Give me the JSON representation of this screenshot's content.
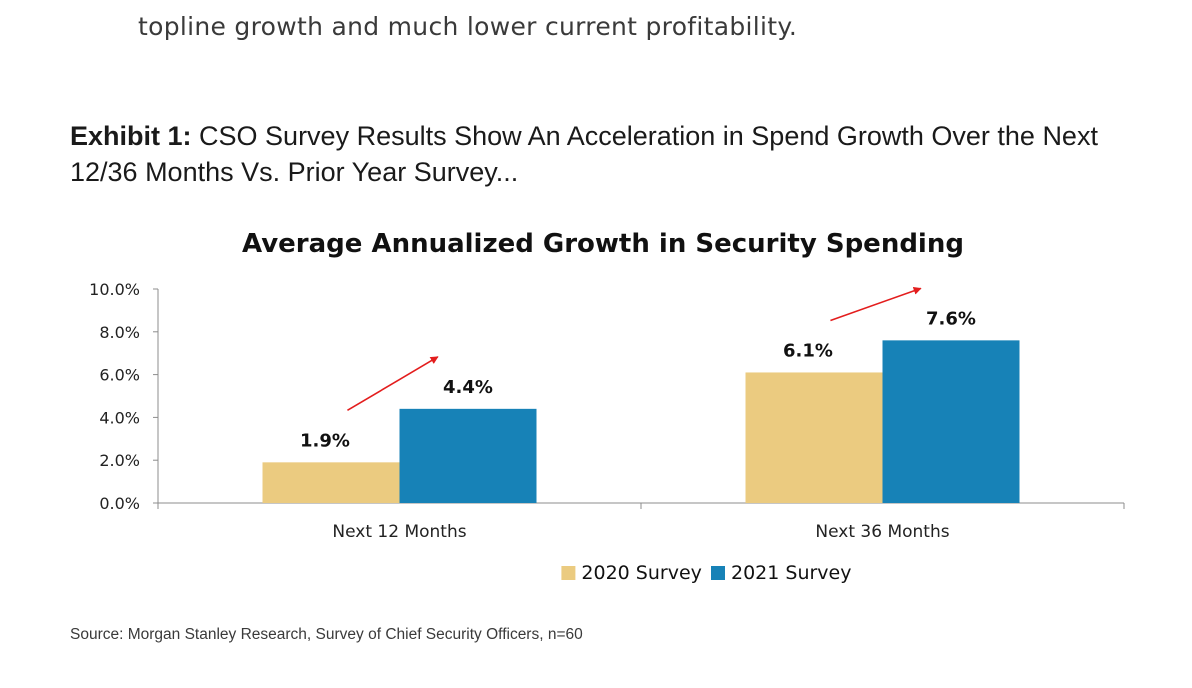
{
  "document": {
    "body_text_line": "topline growth and much lower current profitability.",
    "exhibit_label": "Exhibit 1:",
    "exhibit_title": "CSO Survey Results Show An Acceleration in Spend Growth Over the Next 12/36 Months Vs. Prior Year Survey...",
    "source": "Source: Morgan Stanley Research, Survey of Chief Security Officers, n=60"
  },
  "chart_data": {
    "type": "bar",
    "title": "Average Annualized Growth in Security Spending",
    "xlabel": "",
    "ylabel": "",
    "categories": [
      "Next 12 Months",
      "Next 36 Months"
    ],
    "series": [
      {
        "name": "2020 Survey",
        "values": [
          1.9,
          6.1
        ],
        "labels": [
          "1.9%",
          "6.1%"
        ],
        "color": "#EBCB80"
      },
      {
        "name": "2021 Survey",
        "values": [
          4.4,
          7.6
        ],
        "labels": [
          "4.4%",
          "7.6%"
        ],
        "color": "#1782B7"
      }
    ],
    "ylim": [
      0,
      10
    ],
    "yticks": [
      "0.0%",
      "2.0%",
      "4.0%",
      "6.0%",
      "8.0%",
      "10.0%"
    ],
    "grid": false,
    "legend_position": "bottom",
    "arrow_color": "#E31D1D"
  }
}
